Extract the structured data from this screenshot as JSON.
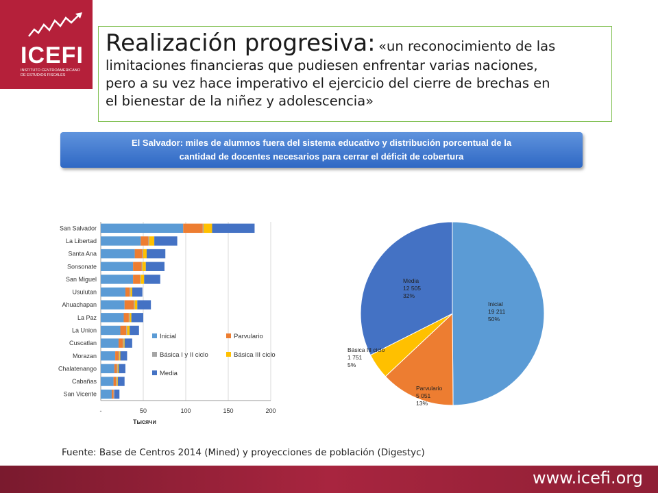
{
  "logo": {
    "text": "ICEFI",
    "subtitle": "INSTITUTO CENTROAMERICANO DE ESTUDIOS FISCALES"
  },
  "title": {
    "main": "Realización progresiva:",
    "first_line_rest": "«un reconocimiento de las",
    "line2": "limitaciones financieras que pudiesen enfrentar varias naciones,",
    "line3": "pero a su vez hace imperativo el ejercicio del cierre de brechas en",
    "line4": "el bienestar de la niñez y adolescencia»"
  },
  "banner": {
    "line1": "El Salvador: miles de alumnos fuera del sistema educativo y distribución porcentual de la",
    "line2": "cantidad de docentes necesarios para cerrar el déficit de cobertura"
  },
  "colors": {
    "inicial": "#5b9bd5",
    "parvulario": "#ed7d31",
    "basica12": "#a5a5a5",
    "basica3": "#ffc000",
    "media": "#4472c4",
    "brand": "#b5203a"
  },
  "chart_data": [
    {
      "type": "bar",
      "orientation": "horizontal",
      "stacked": true,
      "categories": [
        "San Salvador",
        "La Libertad",
        "Santa Ana",
        "Sonsonate",
        "San Miguel",
        "Usulutan",
        "Ahuachapan",
        "La Paz",
        "La Union",
        "Cuscatlan",
        "Morazan",
        "Chalatenango",
        "Cabañas",
        "San Vicente"
      ],
      "series": [
        {
          "name": "Inicial",
          "values": [
            97,
            47,
            40,
            38,
            38,
            29,
            28,
            27,
            23,
            21,
            17,
            16,
            15,
            13
          ]
        },
        {
          "name": "Parvulario",
          "values": [
            23,
            9,
            9,
            10,
            8,
            5,
            11,
            6,
            7,
            5,
            4,
            3,
            3,
            2
          ]
        },
        {
          "name": "Básica I y II ciclo",
          "values": [
            1,
            1,
            1,
            1,
            1,
            1,
            1,
            1,
            1,
            1,
            1,
            1,
            1,
            1
          ]
        },
        {
          "name": "Básica III ciclo",
          "values": [
            10,
            6,
            4,
            4,
            4,
            2,
            3,
            2,
            3,
            1,
            1,
            1,
            1,
            0
          ]
        },
        {
          "name": "Media",
          "values": [
            50,
            27,
            22,
            22,
            19,
            12,
            16,
            14,
            11,
            9,
            8,
            8,
            8,
            6
          ]
        }
      ],
      "xlabel": "Тысячи",
      "xlim": [
        0,
        200
      ],
      "ticks": [
        "-",
        "50",
        "100",
        "150",
        "200"
      ],
      "grid": true,
      "legend_position": "inside-bottom-right"
    },
    {
      "type": "pie",
      "slices": [
        {
          "name": "Inicial",
          "value": 19211,
          "value_label": "19 211",
          "percent_label": "50%"
        },
        {
          "name": "Parvulario",
          "value": 5051,
          "value_label": "5 051",
          "percent_label": "13%"
        },
        {
          "name": "Básica III ciclo",
          "value": 1751,
          "value_label": "1 751",
          "percent_label": "5%"
        },
        {
          "name": "Media",
          "value": 12505,
          "value_label": "12 505",
          "percent_label": "32%"
        }
      ]
    }
  ],
  "source": "Fuente: Base de Centros 2014 (Mined) y proyecciones de población (Digestyc)",
  "footer": {
    "url": "www.icefi.org"
  }
}
